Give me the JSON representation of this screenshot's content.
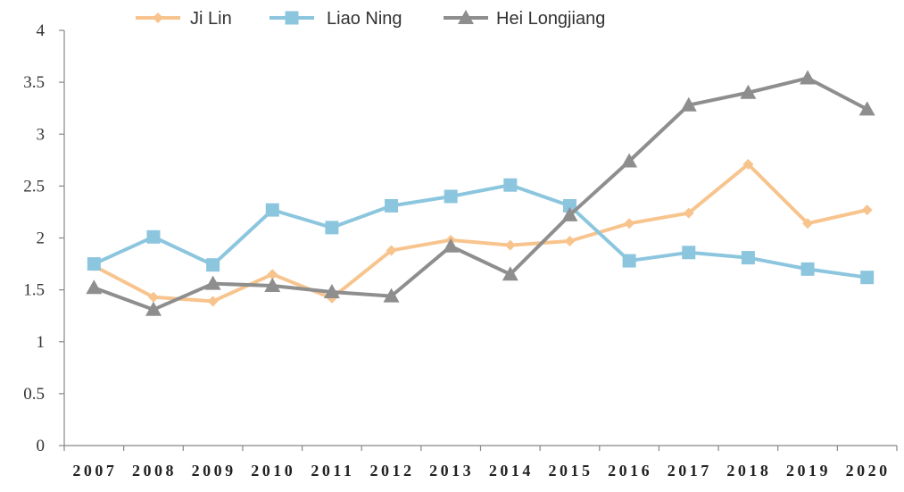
{
  "chart_data": {
    "type": "line",
    "categories": [
      "2007",
      "2008",
      "2009",
      "2010",
      "2011",
      "2012",
      "2013",
      "2014",
      "2015",
      "2016",
      "2017",
      "2018",
      "2019",
      "2020"
    ],
    "ylim": [
      0,
      4
    ],
    "yticks": [
      "0",
      "0.5",
      "1",
      "1.5",
      "2",
      "2.5",
      "3",
      "3.5",
      "4"
    ],
    "grid": false,
    "legend_position": "top",
    "series": [
      {
        "name": "Ji Lin",
        "color": "#F8C48E",
        "marker": "diamond",
        "values": [
          1.73,
          1.43,
          1.39,
          1.65,
          1.42,
          1.88,
          1.98,
          1.93,
          1.97,
          2.14,
          2.24,
          2.71,
          2.14,
          2.27
        ]
      },
      {
        "name": "Liao Ning",
        "color": "#8CC6DE",
        "marker": "square",
        "values": [
          1.75,
          2.01,
          1.74,
          2.27,
          2.1,
          2.31,
          2.4,
          2.51,
          2.31,
          1.78,
          1.86,
          1.81,
          1.7,
          1.62
        ]
      },
      {
        "name": "Hei Longjiang",
        "color": "#8E8E8E",
        "marker": "triangle",
        "values": [
          1.52,
          1.31,
          1.56,
          1.54,
          1.48,
          1.44,
          1.92,
          1.65,
          2.22,
          2.74,
          3.28,
          3.4,
          3.54,
          3.24
        ]
      }
    ]
  }
}
